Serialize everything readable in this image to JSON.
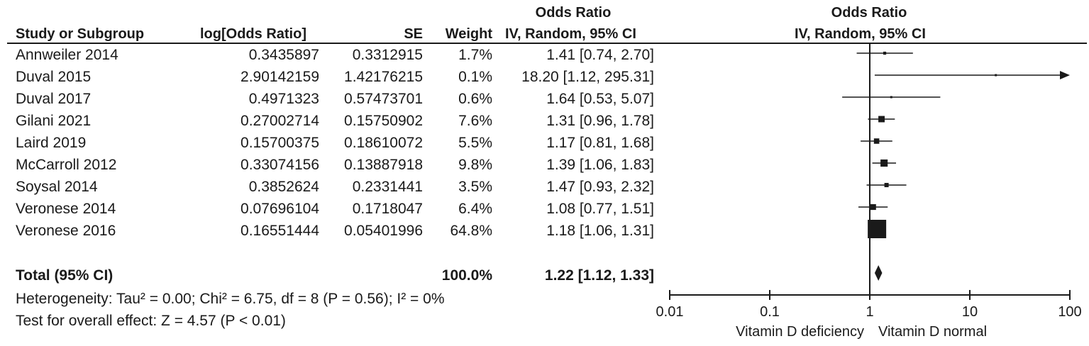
{
  "header": {
    "or_group_left": "Odds Ratio",
    "or_group_right": "Odds Ratio",
    "col_study": "Study or Subgroup",
    "col_logor": "log[Odds Ratio]",
    "col_se": "SE",
    "col_weight": "Weight",
    "col_ci": "IV, Random, 95% CI",
    "col_plot": "IV, Random, 95% CI"
  },
  "rows": [
    {
      "study": "Annweiler 2014",
      "logor": "0.3435897",
      "se": "0.3312915",
      "weight": "1.7%",
      "ci": "1.41 [0.74, 2.70]"
    },
    {
      "study": "Duval 2015",
      "logor": "2.90142159",
      "se": "1.42176215",
      "weight": "0.1%",
      "ci": "18.20 [1.12, 295.31]"
    },
    {
      "study": "Duval 2017",
      "logor": "0.4971323",
      "se": "0.57473701",
      "weight": "0.6%",
      "ci": "1.64 [0.53, 5.07]"
    },
    {
      "study": "Gilani 2021",
      "logor": "0.27002714",
      "se": "0.15750902",
      "weight": "7.6%",
      "ci": "1.31 [0.96, 1.78]"
    },
    {
      "study": "Laird  2019",
      "logor": "0.15700375",
      "se": "0.18610072",
      "weight": "5.5%",
      "ci": "1.17 [0.81, 1.68]"
    },
    {
      "study": "McCarroll 2012",
      "logor": "0.33074156",
      "se": "0.13887918",
      "weight": "9.8%",
      "ci": "1.39 [1.06, 1.83]"
    },
    {
      "study": "Soysal 2014",
      "logor": "0.3852624",
      "se": "0.2331441",
      "weight": "3.5%",
      "ci": "1.47 [0.93, 2.32]"
    },
    {
      "study": "Veronese 2014",
      "logor": "0.07696104",
      "se": "0.1718047",
      "weight": "6.4%",
      "ci": "1.08 [0.77, 1.51]"
    },
    {
      "study": "Veronese 2016",
      "logor": "0.16551444",
      "se": "0.05401996",
      "weight": "64.8%",
      "ci": "1.18 [1.06, 1.31]"
    }
  ],
  "total": {
    "label": "Total (95% CI)",
    "weight": "100.0%",
    "ci": "1.22 [1.12, 1.33]"
  },
  "footer": {
    "heterogeneity": "Heterogeneity: Tau² = 0.00; Chi² = 6.75, df = 8 (P = 0.56); I² = 0%",
    "overall": "Test for overall effect: Z = 4.57 (P < 0.01)"
  },
  "axis": {
    "ticks": [
      "0.01",
      "0.1",
      "1",
      "10",
      "100"
    ],
    "label_left": "Vitamin D deficiency",
    "label_right": "Vitamin D normal"
  },
  "chart_data": {
    "type": "forest",
    "x_scale": "log",
    "xlim": [
      0.01,
      100
    ],
    "reference_line": 1,
    "studies": [
      {
        "name": "Annweiler 2014",
        "or": 1.41,
        "lower": 0.74,
        "upper": 2.7,
        "weight": 1.7
      },
      {
        "name": "Duval 2015",
        "or": 18.2,
        "lower": 1.12,
        "upper": 295.31,
        "weight": 0.1
      },
      {
        "name": "Duval 2017",
        "or": 1.64,
        "lower": 0.53,
        "upper": 5.07,
        "weight": 0.6
      },
      {
        "name": "Gilani 2021",
        "or": 1.31,
        "lower": 0.96,
        "upper": 1.78,
        "weight": 7.6
      },
      {
        "name": "Laird  2019",
        "or": 1.17,
        "lower": 0.81,
        "upper": 1.68,
        "weight": 5.5
      },
      {
        "name": "McCarroll 2012",
        "or": 1.39,
        "lower": 1.06,
        "upper": 1.83,
        "weight": 9.8
      },
      {
        "name": "Soysal 2014",
        "or": 1.47,
        "lower": 0.93,
        "upper": 2.32,
        "weight": 3.5
      },
      {
        "name": "Veronese 2014",
        "or": 1.08,
        "lower": 0.77,
        "upper": 1.51,
        "weight": 6.4
      },
      {
        "name": "Veronese 2016",
        "or": 1.18,
        "lower": 1.06,
        "upper": 1.31,
        "weight": 64.8
      }
    ],
    "pooled": {
      "or": 1.22,
      "lower": 1.12,
      "upper": 1.33
    }
  }
}
